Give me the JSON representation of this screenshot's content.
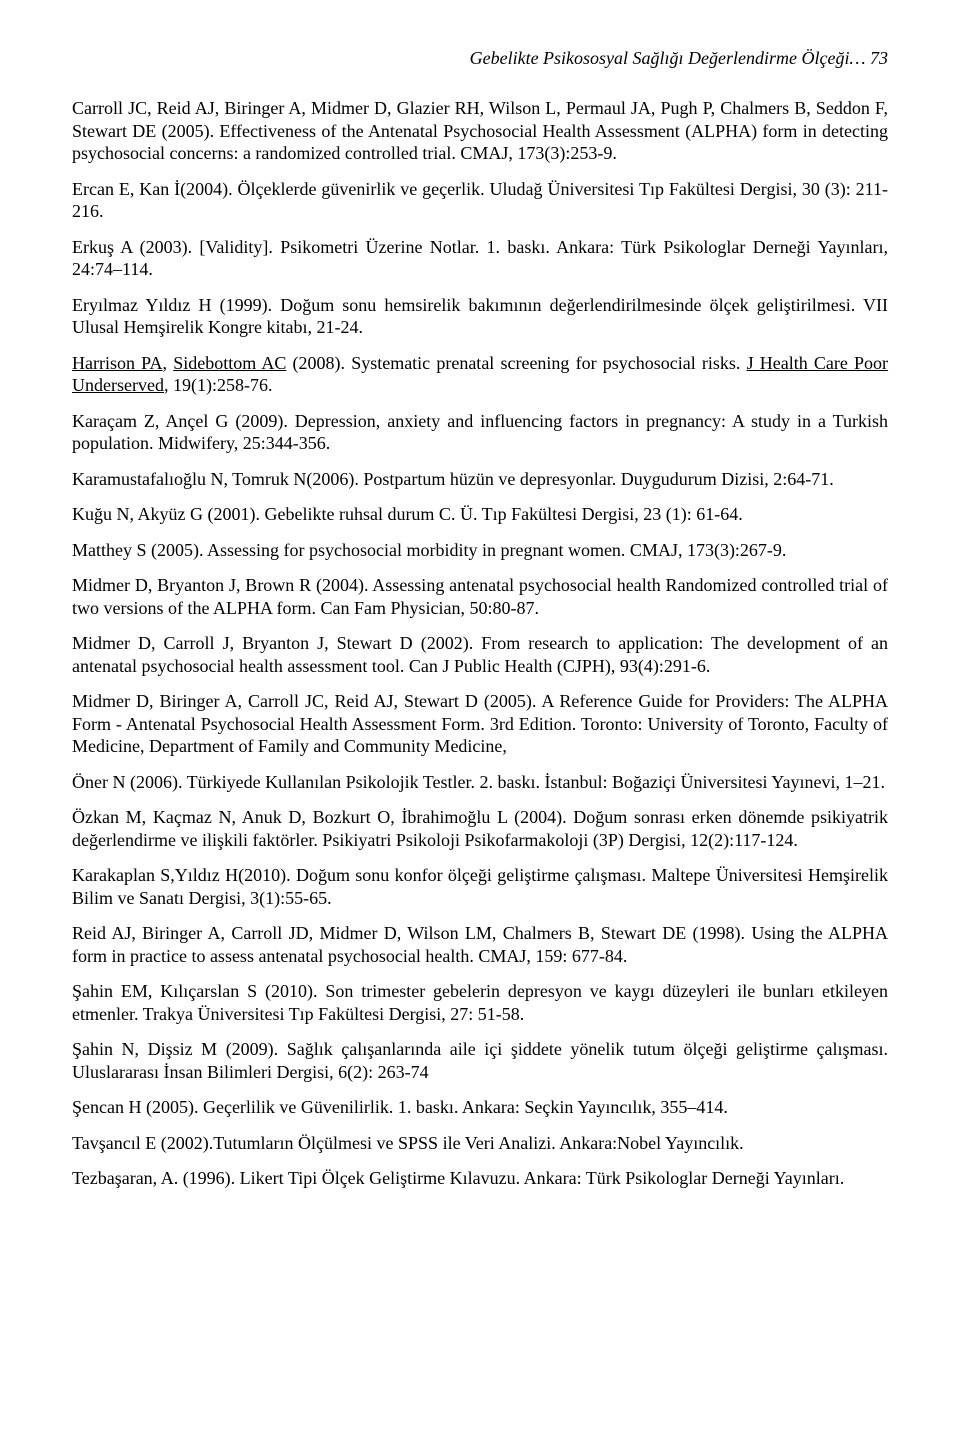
{
  "header": {
    "running_title": "Gebelikte Psikososyal Sağlığı Değerlendirme Ölçeği…",
    "page_number": "73"
  },
  "refs": {
    "r1": "Carroll JC, Reid AJ, Biringer A, Midmer D, Glazier RH, Wilson L, Permaul JA, Pugh P, Chalmers B, Seddon F, Stewart DE (2005). Effectiveness of the Antenatal Psychosocial Health Assessment (ALPHA) form in detecting psychosocial concerns: a randomized controlled trial. CMAJ, 173(3):253-9.",
    "r2": "Ercan E, Kan İ(2004). Ölçeklerde güvenirlik ve geçerlik. Uludağ Üniversitesi Tıp Fakültesi Dergisi, 30 (3): 211-216.",
    "r3": "Erkuş A (2003). [Validity]. Psikometri Üzerine Notlar. 1. baskı. Ankara: Türk Psikologlar Derneği Yayınları, 24:74–114.",
    "r4": "Eryılmaz Yıldız H (1999). Doğum sonu hemsirelik bakımının değerlendirilmesinde ölçek geliştirilmesi. VII Ulusal Hemşirelik Kongre kitabı, 21-24.",
    "r5a": "Harrison PA",
    "r5b": ", ",
    "r5c": "Sidebottom AC",
    "r5d": " (2008). Systematic prenatal screening for psychosocial risks. ",
    "r5e": "J Health Care Poor Underserved",
    "r5f": ", 19(1):258-76.",
    "r6": "Karaçam Z, Ançel G (2009). Depression, anxiety and influencing factors in pregnancy: A study in a Turkish population. Midwifery, 25:344-356.",
    "r7": "Karamustafalıoğlu N, Tomruk N(2006). Postpartum hüzün ve depresyonlar. Duygudurum Dizisi, 2:64-71.",
    "r8": "Kuğu N, Akyüz G (2001). Gebelikte ruhsal durum C. Ü. Tıp Fakültesi Dergisi, 23 (1): 61-64.",
    "r9": "Matthey S (2005). Assessing for psychosocial morbidity in pregnant women. CMAJ, 173(3):267-9.",
    "r10": "Midmer D,  Bryanton J,  Brown R (2004). Assessing antenatal psychosocial health Randomized controlled trial of two versions of the ALPHA form. Can Fam Physician, 50:80-87.",
    "r11": "Midmer D, Carroll J, Bryanton J, Stewart D (2002). From research to application: The development of an antenatal psychosocial health assessment tool. Can J Public Health (CJPH), 93(4):291-6.",
    "r12": "Midmer D, Biringer A, Carroll JC, Reid AJ, Stewart D (2005). A Reference Guide for Providers: The ALPHA Form - Antenatal Psychosocial Health Assessment Form. 3rd Edition. Toronto: University of Toronto, Faculty of Medicine, Department of Family and Community Medicine,",
    "r13": "Öner N (2006). Türkiyede Kullanılan Psikolojik Testler. 2. baskı. İstanbul: Boğaziçi Üniversitesi Yayınevi, 1–21.",
    "r14": "Özkan M, Kaçmaz N, Anuk D, Bozkurt O, İbrahimoğlu L (2004). Doğum sonrası erken dönemde psikiyatrik değerlendirme ve ilişkili faktörler. Psikiyatri Psikoloji Psikofarmakoloji (3P) Dergisi, 12(2):117-124.",
    "r15": "Karakaplan S,Yıldız H(2010). Doğum sonu konfor ölçeği geliştirme çalışması. Maltepe Üniversitesi Hemşirelik Bilim ve Sanatı Dergisi, 3(1):55-65.",
    "r16": "Reid AJ, Biringer A, Carroll JD, Midmer D, Wilson LM, Chalmers B, Stewart DE (1998). Using the ALPHA form in practice to assess antenatal psychosocial health. CMAJ, 159: 677-84.",
    "r17": "Şahin EM, Kılıçarslan S (2010). Son trimester gebelerin depresyon ve kaygı düzeyleri ile bunları etkileyen etmenler. Trakya Üniversitesi Tıp Fakültesi Dergisi, 27: 51-58.",
    "r18": "Şahin N, Dişsiz M (2009). Sağlık çalışanlarında aile içi şiddete yönelik tutum ölçeği geliştirme çalışması. Uluslararası İnsan Bilimleri Dergisi, 6(2): 263-74",
    "r19": "Şencan H (2005). Geçerlilik ve Güvenilirlik. 1. baskı. Ankara: Seçkin Yayıncılık, 355–414.",
    "r20": "Tavşancıl E (2002).Tutumların Ölçülmesi ve SPSS ile Veri Analizi. Ankara:Nobel Yayıncılık.",
    "r21": "Tezbaşaran, A. (1996). Likert Tipi Ölçek Geliştirme Kılavuzu. Ankara: Türk Psikologlar Derneği Yayınları."
  }
}
